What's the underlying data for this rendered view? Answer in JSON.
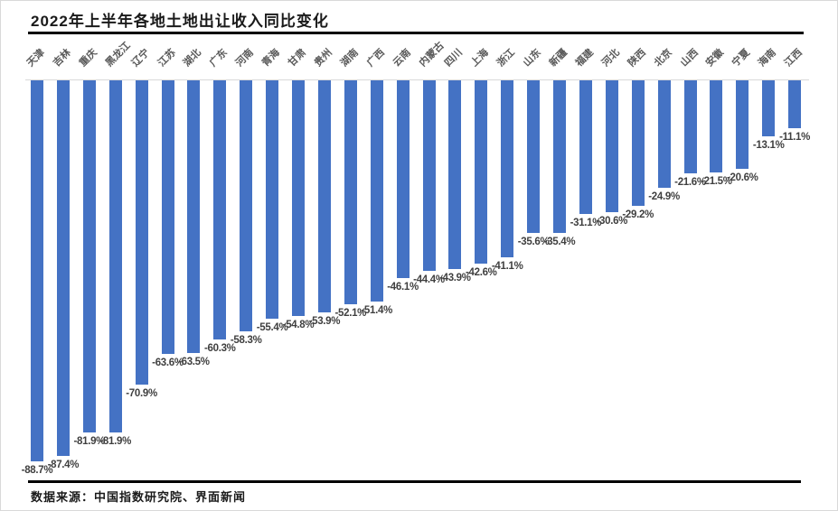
{
  "colors": {
    "bar": "#4472C4",
    "zero_axis": "#D9D9D9",
    "category_label": "#595959",
    "data_label": "#3F3F3F",
    "divider": "#000000",
    "border": "#D9D9D9",
    "background": "#FFFFFF"
  },
  "chart_data": {
    "type": "bar",
    "title": "2022年上半年各地土地出让收入同比变化",
    "source": "数据来源：中国指数研究院、界面新闻",
    "orientation": "vertical",
    "unit": "%",
    "baseline": 0,
    "ylim": [
      -95,
      0
    ],
    "grid": false,
    "legend": false,
    "categories": [
      "天津",
      "吉林",
      "重庆",
      "黑龙江",
      "辽宁",
      "江苏",
      "湖北",
      "广东",
      "河南",
      "青海",
      "甘肃",
      "贵州",
      "湖南",
      "广西",
      "云南",
      "内蒙古",
      "四川",
      "上海",
      "浙江",
      "山东",
      "新疆",
      "福建",
      "河北",
      "陕西",
      "北京",
      "山西",
      "安徽",
      "宁夏",
      "海南",
      "江西"
    ],
    "values": [
      -88.7,
      -87.4,
      -81.9,
      -81.9,
      -70.9,
      -63.6,
      -63.5,
      -60.3,
      -58.3,
      -55.4,
      -54.8,
      -53.9,
      -52.1,
      -51.4,
      -46.1,
      -44.4,
      -43.9,
      -42.6,
      -41.1,
      -35.6,
      -35.4,
      -31.1,
      -30.6,
      -29.2,
      -24.9,
      -21.6,
      -21.5,
      -20.6,
      -13.1,
      -11.1
    ],
    "value_labels": [
      "-88.7%",
      "-87.4%",
      "-81.9%",
      "-81.9%",
      "-70.9%",
      "-63.6%",
      "-63.5%",
      "-60.3%",
      "-58.3%",
      "-55.4%",
      "-54.8%",
      "-53.9%",
      "-52.1%",
      "-51.4%",
      "-46.1%",
      "-44.4%",
      "-43.9%",
      "-42.6%",
      "-41.1%",
      "-35.6%",
      "-35.4%",
      "-31.1%",
      "-30.6%",
      "-29.2%",
      "-24.9%",
      "-21.6%",
      "-21.5%",
      "-20.6%",
      "-13.1%",
      "-11.1%"
    ]
  }
}
